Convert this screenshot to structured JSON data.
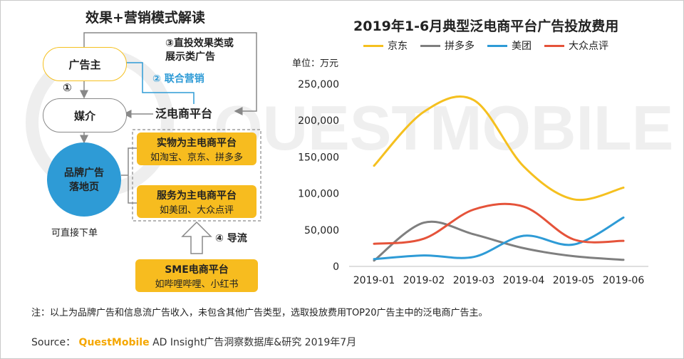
{
  "left_panel": {
    "title": "效果+营销模式解读",
    "advertiser": "广告主",
    "media": "媒介",
    "ecommerce_platform": "泛电商平台",
    "step1": "①",
    "step2": "② 联合营销",
    "step3_line1": "③直投效果类或",
    "step3_line2": "展示类广告",
    "step4": "④ 导流",
    "landing_page_line1": "品牌广告",
    "landing_page_line2": "落地页",
    "direct_order": "可直接下单",
    "physical_platform": {
      "title": "实物为主电商平台",
      "examples": "如淘宝、京东、拼多多"
    },
    "service_platform": {
      "title": "服务为主电商平台",
      "examples": "如美团、大众点评"
    },
    "sme_platform": {
      "title": "SME电商平台",
      "examples": "如哔哩哔哩、小红书"
    }
  },
  "watermark": "QUESTMOBILE",
  "note": "注：以上为品牌广告和信息流广告收入，未包含其他广告类型，选取投放费用TOP20广告主中的泛电商广告主。",
  "source": {
    "prefix": "Source：",
    "brand": "QuestMobile",
    "suffix": "AD Insight广告洞察数据库&研究 2019年7月"
  },
  "colors": {
    "jd": "#f5c01f",
    "pdd": "#7f7f7f",
    "meituan": "#2e9bd6",
    "dianping": "#e5533a",
    "blue_circle": "#2e9bd6",
    "yellow_box": "#f7bc1f"
  },
  "chart_data": {
    "type": "line",
    "title": "2019年1-6月典型泛电商平台广告投放费用",
    "unit_label": "单位：万元",
    "categories": [
      "2019-01",
      "2019-02",
      "2019-03",
      "2019-04",
      "2019-05",
      "2019-06"
    ],
    "ylim": [
      0,
      250000
    ],
    "yticks": [
      "0",
      "50,000",
      "100,000",
      "150,000",
      "200,000",
      "250,000"
    ],
    "legend_position": "top",
    "series": [
      {
        "name": "京东",
        "color": "#f5c01f",
        "values": [
          138000,
          212000,
          228000,
          137000,
          92000,
          108000
        ]
      },
      {
        "name": "拼多多",
        "color": "#7f7f7f",
        "values": [
          8000,
          60000,
          44000,
          25000,
          14000,
          9000
        ]
      },
      {
        "name": "美团",
        "color": "#2e9bd6",
        "values": [
          10000,
          15000,
          13000,
          42000,
          30000,
          67000
        ]
      },
      {
        "name": "大众点评",
        "color": "#e5533a",
        "values": [
          31000,
          38000,
          78000,
          82000,
          37000,
          35000
        ]
      }
    ]
  }
}
